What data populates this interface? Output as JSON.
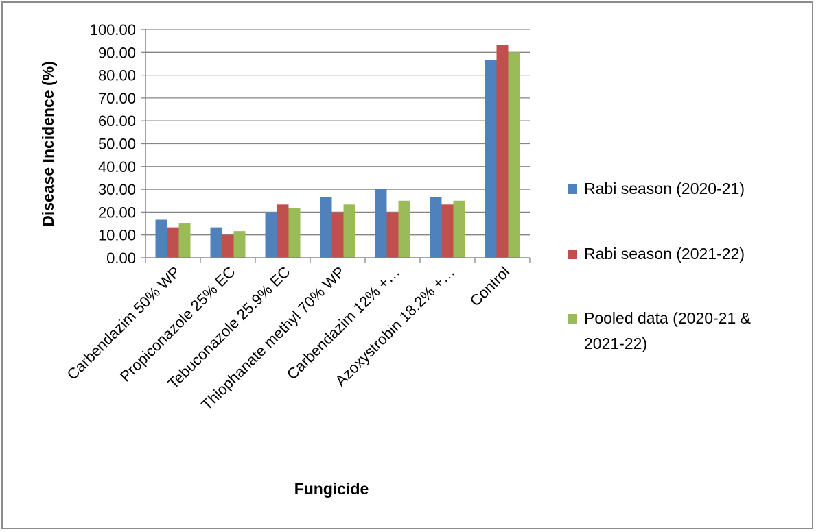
{
  "chart_data": {
    "type": "bar",
    "xlabel": "Fungicide",
    "ylabel": "Disease Incidence (%)",
    "ylim": [
      0,
      100
    ],
    "ytick_step": 10,
    "ytick_decimals": 2,
    "grid": "horizontal major",
    "legend_position": "right",
    "categories": [
      "Carbendazim 50% WP",
      "Propiconazole 25% EC",
      "Tebuconazole 25.9% EC",
      "Thiophanate methyl 70% WP",
      "Carbendazim 12% +…",
      "Azoxystrobin 18.2% +…",
      "Control"
    ],
    "series": [
      {
        "name": "Rabi season (2020-21)",
        "color": "#4f81bd",
        "values": [
          16.67,
          13.33,
          20.0,
          26.67,
          30.0,
          26.67,
          86.67
        ]
      },
      {
        "name": "Rabi season (2021-22)",
        "color": "#c0504d",
        "values": [
          13.33,
          10.0,
          23.33,
          20.0,
          20.0,
          23.33,
          93.33
        ]
      },
      {
        "name": "Pooled data (2020-21 & 2021-22)",
        "color": "#9bbb59",
        "values": [
          15.0,
          11.67,
          21.67,
          23.33,
          25.0,
          25.0,
          90.0
        ]
      }
    ]
  }
}
